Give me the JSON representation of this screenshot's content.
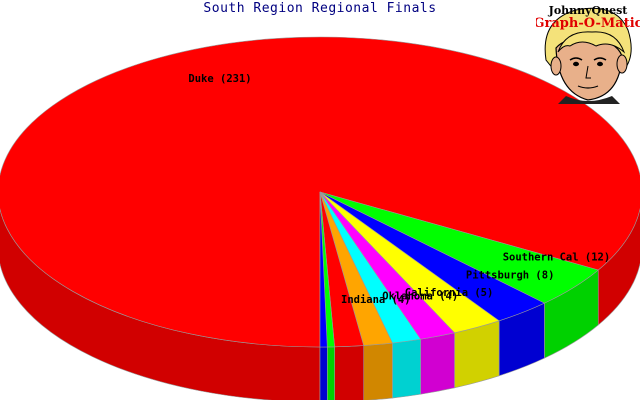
{
  "chart_data": {
    "type": "pie",
    "title": "South Region Regional Finals",
    "slices": [
      {
        "label": "Duke (231)",
        "value": 231,
        "color": "#ff0000"
      },
      {
        "label": "Southern Cal (12)",
        "value": 12,
        "color": "#00ff00"
      },
      {
        "label": "Pittsburgh (8)",
        "value": 8,
        "color": "#0000ff"
      },
      {
        "label": "",
        "value": 7,
        "color": "#ffff00"
      },
      {
        "label": "California (5)",
        "value": 5,
        "color": "#ff00ff"
      },
      {
        "label": "Oklahoma (4)",
        "value": 4,
        "color": "#00ffff"
      },
      {
        "label": "",
        "value": 4,
        "color": "#ffa500"
      },
      {
        "label": "Indiana (4)",
        "value": 4,
        "color": "#ff0000"
      },
      {
        "label": "",
        "value": 1,
        "color": "#00ff00"
      },
      {
        "label": "",
        "value": 1,
        "color": "#0000ff"
      }
    ],
    "legend": "none",
    "style": "3d"
  },
  "logo": {
    "line1": "JohnnyQuest",
    "line2": "Graph-O-Matic"
  }
}
